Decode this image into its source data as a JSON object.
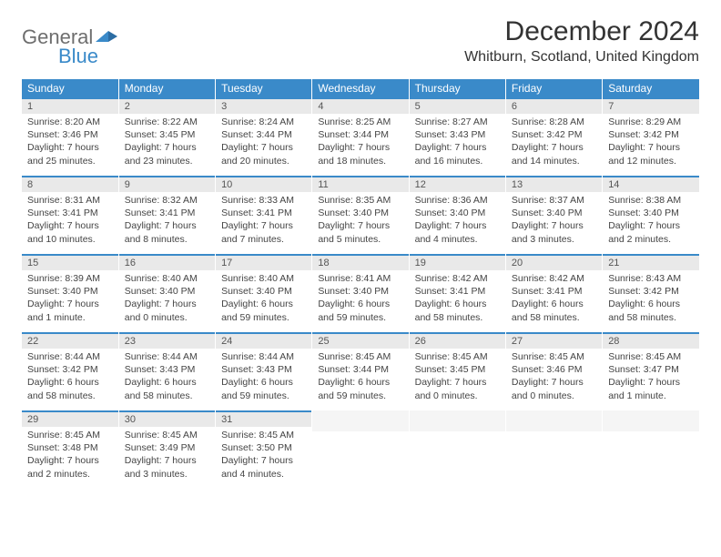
{
  "brand": {
    "word1": "General",
    "word2": "Blue"
  },
  "colors": {
    "accent": "#3a8ac9",
    "header_text": "#ffffff",
    "daynum_bg": "#e9e9e9",
    "body_text": "#444444"
  },
  "title": "December 2024",
  "location": "Whitburn, Scotland, United Kingdom",
  "weekdays": [
    "Sunday",
    "Monday",
    "Tuesday",
    "Wednesday",
    "Thursday",
    "Friday",
    "Saturday"
  ],
  "weeks": [
    [
      {
        "n": "1",
        "sr": "Sunrise: 8:20 AM",
        "ss": "Sunset: 3:46 PM",
        "d1": "Daylight: 7 hours",
        "d2": "and 25 minutes."
      },
      {
        "n": "2",
        "sr": "Sunrise: 8:22 AM",
        "ss": "Sunset: 3:45 PM",
        "d1": "Daylight: 7 hours",
        "d2": "and 23 minutes."
      },
      {
        "n": "3",
        "sr": "Sunrise: 8:24 AM",
        "ss": "Sunset: 3:44 PM",
        "d1": "Daylight: 7 hours",
        "d2": "and 20 minutes."
      },
      {
        "n": "4",
        "sr": "Sunrise: 8:25 AM",
        "ss": "Sunset: 3:44 PM",
        "d1": "Daylight: 7 hours",
        "d2": "and 18 minutes."
      },
      {
        "n": "5",
        "sr": "Sunrise: 8:27 AM",
        "ss": "Sunset: 3:43 PM",
        "d1": "Daylight: 7 hours",
        "d2": "and 16 minutes."
      },
      {
        "n": "6",
        "sr": "Sunrise: 8:28 AM",
        "ss": "Sunset: 3:42 PM",
        "d1": "Daylight: 7 hours",
        "d2": "and 14 minutes."
      },
      {
        "n": "7",
        "sr": "Sunrise: 8:29 AM",
        "ss": "Sunset: 3:42 PM",
        "d1": "Daylight: 7 hours",
        "d2": "and 12 minutes."
      }
    ],
    [
      {
        "n": "8",
        "sr": "Sunrise: 8:31 AM",
        "ss": "Sunset: 3:41 PM",
        "d1": "Daylight: 7 hours",
        "d2": "and 10 minutes."
      },
      {
        "n": "9",
        "sr": "Sunrise: 8:32 AM",
        "ss": "Sunset: 3:41 PM",
        "d1": "Daylight: 7 hours",
        "d2": "and 8 minutes."
      },
      {
        "n": "10",
        "sr": "Sunrise: 8:33 AM",
        "ss": "Sunset: 3:41 PM",
        "d1": "Daylight: 7 hours",
        "d2": "and 7 minutes."
      },
      {
        "n": "11",
        "sr": "Sunrise: 8:35 AM",
        "ss": "Sunset: 3:40 PM",
        "d1": "Daylight: 7 hours",
        "d2": "and 5 minutes."
      },
      {
        "n": "12",
        "sr": "Sunrise: 8:36 AM",
        "ss": "Sunset: 3:40 PM",
        "d1": "Daylight: 7 hours",
        "d2": "and 4 minutes."
      },
      {
        "n": "13",
        "sr": "Sunrise: 8:37 AM",
        "ss": "Sunset: 3:40 PM",
        "d1": "Daylight: 7 hours",
        "d2": "and 3 minutes."
      },
      {
        "n": "14",
        "sr": "Sunrise: 8:38 AM",
        "ss": "Sunset: 3:40 PM",
        "d1": "Daylight: 7 hours",
        "d2": "and 2 minutes."
      }
    ],
    [
      {
        "n": "15",
        "sr": "Sunrise: 8:39 AM",
        "ss": "Sunset: 3:40 PM",
        "d1": "Daylight: 7 hours",
        "d2": "and 1 minute."
      },
      {
        "n": "16",
        "sr": "Sunrise: 8:40 AM",
        "ss": "Sunset: 3:40 PM",
        "d1": "Daylight: 7 hours",
        "d2": "and 0 minutes."
      },
      {
        "n": "17",
        "sr": "Sunrise: 8:40 AM",
        "ss": "Sunset: 3:40 PM",
        "d1": "Daylight: 6 hours",
        "d2": "and 59 minutes."
      },
      {
        "n": "18",
        "sr": "Sunrise: 8:41 AM",
        "ss": "Sunset: 3:40 PM",
        "d1": "Daylight: 6 hours",
        "d2": "and 59 minutes."
      },
      {
        "n": "19",
        "sr": "Sunrise: 8:42 AM",
        "ss": "Sunset: 3:41 PM",
        "d1": "Daylight: 6 hours",
        "d2": "and 58 minutes."
      },
      {
        "n": "20",
        "sr": "Sunrise: 8:42 AM",
        "ss": "Sunset: 3:41 PM",
        "d1": "Daylight: 6 hours",
        "d2": "and 58 minutes."
      },
      {
        "n": "21",
        "sr": "Sunrise: 8:43 AM",
        "ss": "Sunset: 3:42 PM",
        "d1": "Daylight: 6 hours",
        "d2": "and 58 minutes."
      }
    ],
    [
      {
        "n": "22",
        "sr": "Sunrise: 8:44 AM",
        "ss": "Sunset: 3:42 PM",
        "d1": "Daylight: 6 hours",
        "d2": "and 58 minutes."
      },
      {
        "n": "23",
        "sr": "Sunrise: 8:44 AM",
        "ss": "Sunset: 3:43 PM",
        "d1": "Daylight: 6 hours",
        "d2": "and 58 minutes."
      },
      {
        "n": "24",
        "sr": "Sunrise: 8:44 AM",
        "ss": "Sunset: 3:43 PM",
        "d1": "Daylight: 6 hours",
        "d2": "and 59 minutes."
      },
      {
        "n": "25",
        "sr": "Sunrise: 8:45 AM",
        "ss": "Sunset: 3:44 PM",
        "d1": "Daylight: 6 hours",
        "d2": "and 59 minutes."
      },
      {
        "n": "26",
        "sr": "Sunrise: 8:45 AM",
        "ss": "Sunset: 3:45 PM",
        "d1": "Daylight: 7 hours",
        "d2": "and 0 minutes."
      },
      {
        "n": "27",
        "sr": "Sunrise: 8:45 AM",
        "ss": "Sunset: 3:46 PM",
        "d1": "Daylight: 7 hours",
        "d2": "and 0 minutes."
      },
      {
        "n": "28",
        "sr": "Sunrise: 8:45 AM",
        "ss": "Sunset: 3:47 PM",
        "d1": "Daylight: 7 hours",
        "d2": "and 1 minute."
      }
    ],
    [
      {
        "n": "29",
        "sr": "Sunrise: 8:45 AM",
        "ss": "Sunset: 3:48 PM",
        "d1": "Daylight: 7 hours",
        "d2": "and 2 minutes."
      },
      {
        "n": "30",
        "sr": "Sunrise: 8:45 AM",
        "ss": "Sunset: 3:49 PM",
        "d1": "Daylight: 7 hours",
        "d2": "and 3 minutes."
      },
      {
        "n": "31",
        "sr": "Sunrise: 8:45 AM",
        "ss": "Sunset: 3:50 PM",
        "d1": "Daylight: 7 hours",
        "d2": "and 4 minutes."
      },
      {
        "empty": true
      },
      {
        "empty": true
      },
      {
        "empty": true
      },
      {
        "empty": true
      }
    ]
  ]
}
